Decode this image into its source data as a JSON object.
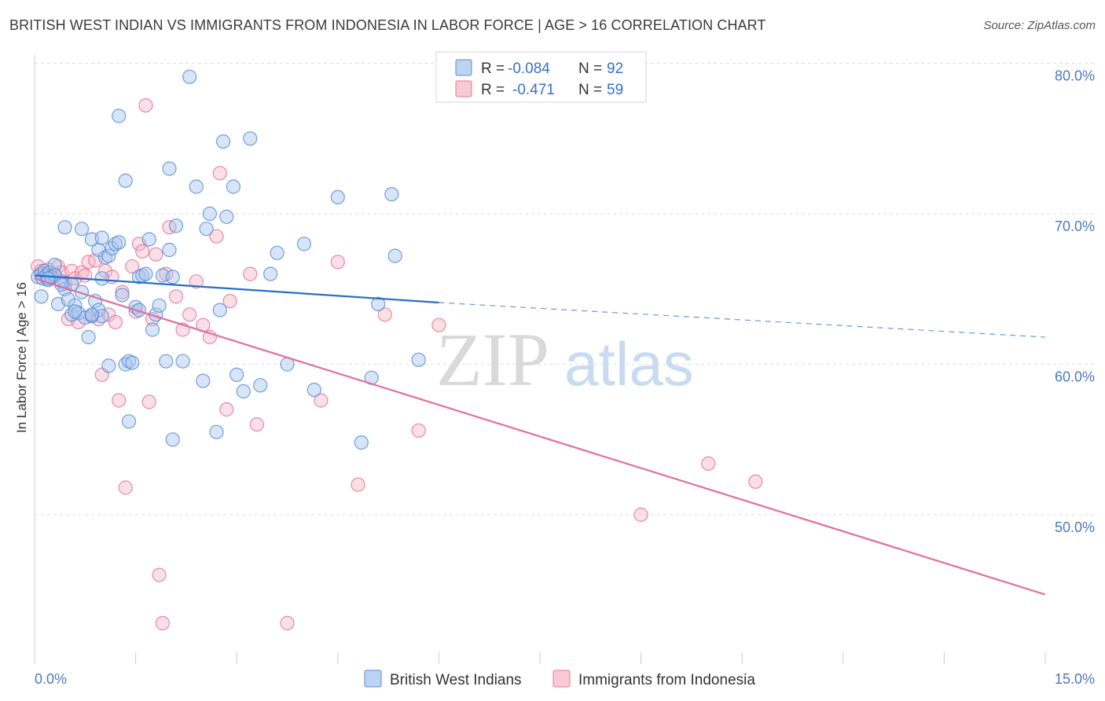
{
  "title": "BRITISH WEST INDIAN VS IMMIGRANTS FROM INDONESIA IN LABOR FORCE | AGE > 16 CORRELATION CHART",
  "source": "Source: ZipAtlas.com",
  "colors": {
    "blue": "#5b8fd4",
    "blue_fill": "#a9c6ef",
    "blue_line": "#2a6cc8",
    "pink": "#e3779a",
    "pink_fill": "#f5b7c9",
    "pink_line": "#e0709a",
    "tick_text": "#4a78c2",
    "grid": "#dddddd"
  },
  "legend": {
    "r_label": "R =",
    "n_label": "N =",
    "blue": {
      "r": "-0.084",
      "n": "92"
    },
    "pink": {
      "r": "-0.471",
      "n": "59"
    }
  },
  "watermark": {
    "zip": "ZIP",
    "atlas": "atlas"
  },
  "chart_data": {
    "type": "scatter",
    "title": "BRITISH WEST INDIAN VS IMMIGRANTS FROM INDONESIA IN LABOR FORCE | AGE > 16 CORRELATION CHART",
    "xlabel": "",
    "ylabel": "In Labor Force | Age > 16",
    "xlim": [
      0,
      15
    ],
    "ylim": [
      40,
      82
    ],
    "x_tick_labels": [
      "0.0%",
      "15.0%"
    ],
    "y_ticks": [
      50,
      60,
      70,
      80
    ],
    "y_tick_labels": [
      "50.0%",
      "60.0%",
      "70.0%",
      "80.0%"
    ],
    "grid": true,
    "legend_position": "top-center",
    "series": [
      {
        "name": "British West Indians",
        "color": "#5b8fd4",
        "trend": {
          "x": [
            0,
            6
          ],
          "y": [
            65.9,
            64.1
          ],
          "dashed_to": [
            15,
            61.8
          ]
        },
        "points": [
          [
            0.05,
            65.8
          ],
          [
            0.1,
            66.0
          ],
          [
            0.12,
            65.7
          ],
          [
            0.15,
            66.2
          ],
          [
            0.18,
            65.9
          ],
          [
            0.2,
            65.6
          ],
          [
            0.22,
            66.1
          ],
          [
            0.25,
            65.8
          ],
          [
            0.1,
            64.5
          ],
          [
            0.3,
            66.6
          ],
          [
            0.35,
            64.0
          ],
          [
            0.4,
            65.5
          ],
          [
            0.45,
            65.0
          ],
          [
            0.5,
            64.3
          ],
          [
            0.55,
            63.3
          ],
          [
            0.6,
            63.9
          ],
          [
            0.65,
            63.4
          ],
          [
            0.7,
            64.8
          ],
          [
            0.75,
            63.1
          ],
          [
            0.8,
            61.8
          ],
          [
            0.85,
            63.2
          ],
          [
            0.9,
            64.2
          ],
          [
            0.95,
            63.6
          ],
          [
            1.0,
            63.2
          ],
          [
            0.45,
            69.1
          ],
          [
            0.7,
            69.0
          ],
          [
            0.85,
            68.3
          ],
          [
            0.95,
            67.6
          ],
          [
            1.0,
            68.4
          ],
          [
            1.05,
            67.1
          ],
          [
            1.1,
            67.2
          ],
          [
            1.15,
            67.7
          ],
          [
            1.0,
            65.7
          ],
          [
            1.2,
            68.0
          ],
          [
            1.25,
            68.1
          ],
          [
            1.3,
            64.6
          ],
          [
            1.35,
            60.0
          ],
          [
            1.4,
            60.2
          ],
          [
            1.45,
            60.1
          ],
          [
            1.5,
            63.8
          ],
          [
            1.55,
            65.8
          ],
          [
            1.6,
            65.9
          ],
          [
            1.65,
            66.0
          ],
          [
            1.7,
            68.3
          ],
          [
            1.75,
            62.3
          ],
          [
            1.8,
            63.3
          ],
          [
            1.85,
            63.9
          ],
          [
            1.9,
            65.9
          ],
          [
            1.95,
            60.2
          ],
          [
            2.0,
            67.6
          ],
          [
            2.05,
            65.8
          ],
          [
            2.1,
            69.2
          ],
          [
            2.2,
            60.2
          ],
          [
            2.3,
            79.1
          ],
          [
            2.4,
            71.8
          ],
          [
            2.5,
            58.9
          ],
          [
            2.55,
            69.0
          ],
          [
            2.6,
            70.0
          ],
          [
            2.7,
            55.5
          ],
          [
            2.75,
            63.6
          ],
          [
            2.8,
            74.8
          ],
          [
            2.85,
            69.8
          ],
          [
            2.95,
            71.8
          ],
          [
            3.0,
            59.3
          ],
          [
            3.1,
            58.2
          ],
          [
            3.2,
            75.0
          ],
          [
            3.35,
            58.6
          ],
          [
            3.5,
            66.0
          ],
          [
            3.6,
            67.4
          ],
          [
            3.75,
            60.0
          ],
          [
            4.0,
            68.0
          ],
          [
            4.15,
            58.3
          ],
          [
            4.5,
            71.1
          ],
          [
            4.85,
            54.8
          ],
          [
            5.0,
            59.1
          ],
          [
            5.1,
            64.0
          ],
          [
            5.3,
            71.3
          ],
          [
            5.35,
            67.2
          ],
          [
            5.7,
            60.3
          ],
          [
            1.25,
            76.5
          ],
          [
            1.35,
            72.2
          ],
          [
            2.0,
            73.0
          ],
          [
            2.05,
            55.0
          ],
          [
            1.55,
            63.6
          ],
          [
            0.3,
            65.9
          ],
          [
            0.55,
            65.3
          ],
          [
            0.6,
            63.5
          ],
          [
            1.4,
            56.2
          ],
          [
            0.2,
            65.7
          ],
          [
            0.4,
            65.3
          ],
          [
            0.85,
            63.3
          ],
          [
            1.1,
            59.9
          ]
        ]
      },
      {
        "name": "Immigrants from Indonesia",
        "color": "#e3779a",
        "trend": {
          "x": [
            0,
            15
          ],
          "y": [
            65.7,
            44.7
          ]
        },
        "points": [
          [
            0.05,
            66.5
          ],
          [
            0.1,
            66.2
          ],
          [
            0.15,
            65.9
          ],
          [
            0.2,
            66.3
          ],
          [
            0.25,
            65.7
          ],
          [
            0.3,
            66.0
          ],
          [
            0.35,
            66.5
          ],
          [
            0.4,
            66.1
          ],
          [
            0.45,
            65.4
          ],
          [
            0.5,
            63.0
          ],
          [
            0.55,
            66.2
          ],
          [
            0.6,
            65.7
          ],
          [
            0.65,
            62.8
          ],
          [
            0.7,
            66.1
          ],
          [
            0.75,
            65.9
          ],
          [
            0.8,
            66.8
          ],
          [
            0.85,
            63.2
          ],
          [
            0.9,
            66.9
          ],
          [
            0.95,
            63.0
          ],
          [
            1.0,
            59.3
          ],
          [
            1.05,
            66.2
          ],
          [
            1.1,
            63.3
          ],
          [
            1.15,
            65.8
          ],
          [
            1.2,
            62.8
          ],
          [
            1.25,
            57.6
          ],
          [
            1.3,
            64.8
          ],
          [
            1.35,
            51.8
          ],
          [
            1.45,
            66.5
          ],
          [
            1.5,
            63.5
          ],
          [
            1.55,
            68.0
          ],
          [
            1.6,
            67.5
          ],
          [
            1.65,
            77.2
          ],
          [
            1.7,
            57.5
          ],
          [
            1.75,
            63.0
          ],
          [
            1.8,
            67.3
          ],
          [
            1.85,
            46.0
          ],
          [
            1.9,
            42.8
          ],
          [
            1.95,
            66.0
          ],
          [
            2.0,
            69.1
          ],
          [
            2.1,
            64.5
          ],
          [
            2.2,
            62.3
          ],
          [
            2.3,
            63.3
          ],
          [
            2.4,
            65.5
          ],
          [
            2.5,
            62.6
          ],
          [
            2.6,
            61.8
          ],
          [
            2.7,
            68.5
          ],
          [
            2.75,
            72.7
          ],
          [
            2.85,
            57.0
          ],
          [
            2.9,
            64.2
          ],
          [
            3.2,
            66.0
          ],
          [
            3.3,
            56.0
          ],
          [
            3.75,
            42.8
          ],
          [
            4.25,
            57.6
          ],
          [
            4.5,
            66.8
          ],
          [
            4.8,
            52.0
          ],
          [
            5.2,
            63.3
          ],
          [
            5.7,
            55.6
          ],
          [
            6.0,
            62.6
          ],
          [
            9.0,
            50.0
          ]
        ]
      },
      {
        "name": "Immigrants from Indonesia (outliers)",
        "color": "#e3779a",
        "points": [
          [
            10.0,
            53.4
          ],
          [
            10.7,
            52.2
          ]
        ]
      }
    ]
  },
  "bottom_legend": {
    "blue_label": "British West Indians",
    "pink_label": "Immigrants from Indonesia"
  }
}
